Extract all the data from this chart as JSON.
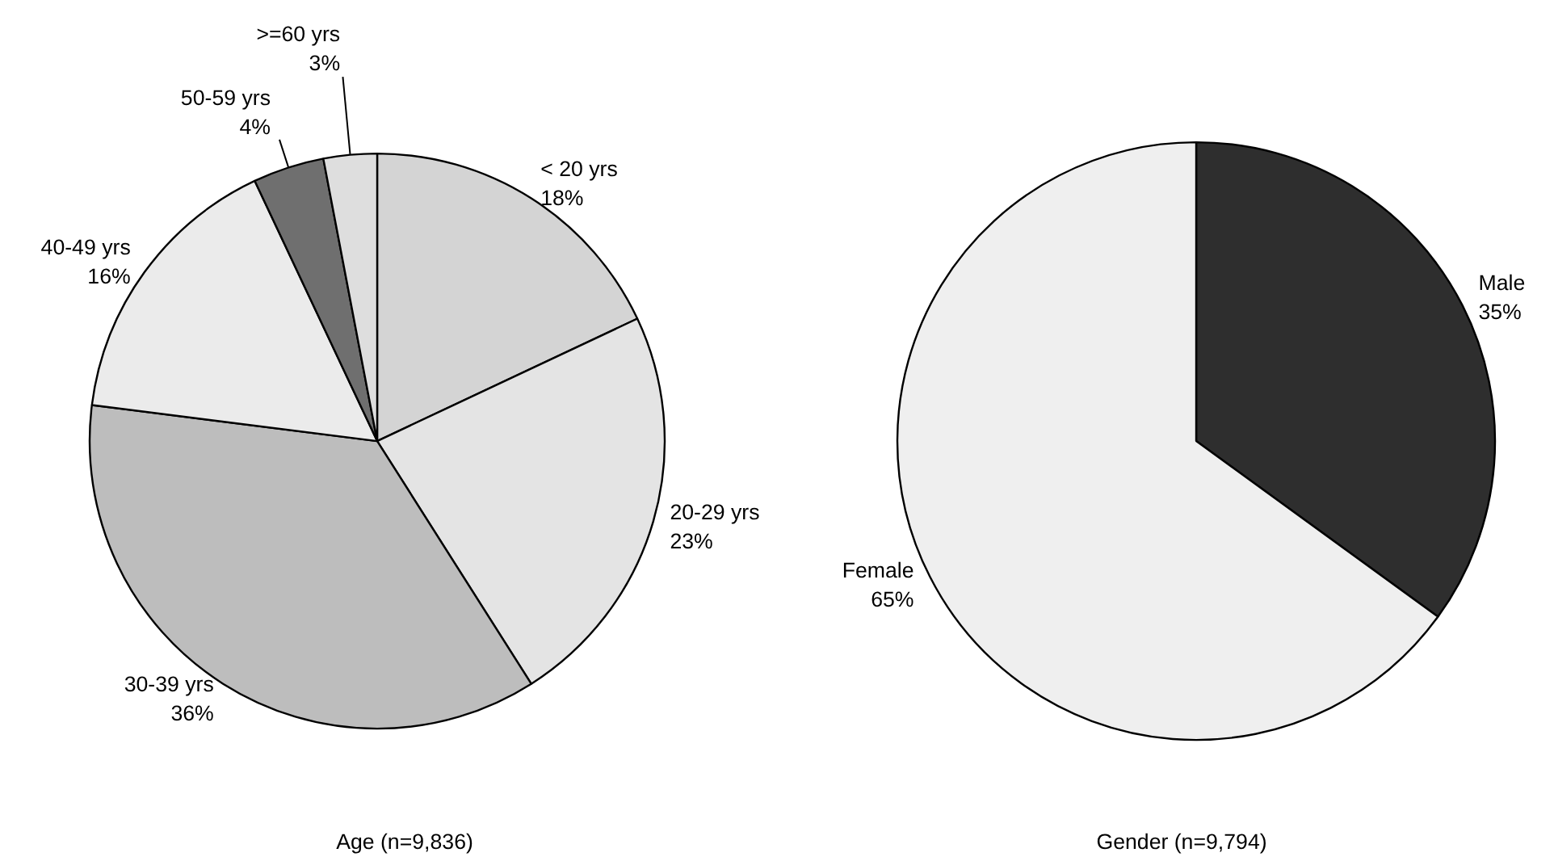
{
  "chart_data": [
    {
      "type": "pie",
      "title": "Age (n=9,836)",
      "categories": [
        "< 20 yrs",
        "20-29 yrs",
        "30-39 yrs",
        "40-49 yrs",
        "50-59 yrs",
        ">=60 yrs"
      ],
      "values": [
        18,
        23,
        36,
        16,
        4,
        3
      ],
      "colors": [
        "#d4d4d4",
        "#e4e4e4",
        "#bdbdbd",
        "#ebebeb",
        "#6f6f6f",
        "#dedede"
      ],
      "value_labels": [
        "18%",
        "23%",
        "36%",
        "16%",
        "4%",
        "3%"
      ]
    },
    {
      "type": "pie",
      "title": "Gender (n=9,794)",
      "categories": [
        "Male",
        "Female"
      ],
      "values": [
        35,
        65
      ],
      "colors": [
        "#2e2e2e",
        "#efefef"
      ],
      "value_labels": [
        "35%",
        "65%"
      ]
    }
  ]
}
